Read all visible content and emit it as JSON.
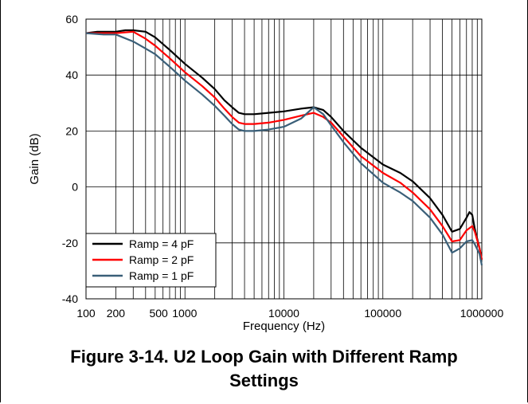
{
  "chart_data": {
    "type": "line",
    "xlabel": "Frequency (Hz)",
    "ylabel": "Gain (dB)",
    "xscale": "log",
    "xlim": [
      100,
      1000000
    ],
    "ylim": [
      -40,
      60
    ],
    "grid": true,
    "x_tick_labels": [
      "100",
      "200",
      "500",
      "1000",
      "10000",
      "100000",
      "1000000"
    ],
    "y_tick_labels": [
      "60",
      "40",
      "20",
      "0",
      "-20",
      "-40"
    ],
    "legend_position": "bottom-left",
    "series": [
      {
        "name": "Ramp = 4 pF",
        "color": "#000000",
        "points": [
          [
            100,
            55
          ],
          [
            130,
            55.5
          ],
          [
            170,
            55.5
          ],
          [
            200,
            55.5
          ],
          [
            250,
            56
          ],
          [
            300,
            56
          ],
          [
            400,
            55.5
          ],
          [
            500,
            53.5
          ],
          [
            700,
            49
          ],
          [
            1000,
            44
          ],
          [
            1500,
            39
          ],
          [
            2000,
            35
          ],
          [
            2500,
            31
          ],
          [
            3000,
            28.5
          ],
          [
            3500,
            26.5
          ],
          [
            4000,
            26
          ],
          [
            5000,
            26
          ],
          [
            7000,
            26.5
          ],
          [
            10000,
            27
          ],
          [
            15000,
            28
          ],
          [
            20000,
            28.5
          ],
          [
            25000,
            27.5
          ],
          [
            30000,
            25
          ],
          [
            40000,
            20
          ],
          [
            60000,
            14
          ],
          [
            100000,
            8
          ],
          [
            150000,
            5
          ],
          [
            200000,
            2
          ],
          [
            300000,
            -4
          ],
          [
            400000,
            -10
          ],
          [
            500000,
            -16
          ],
          [
            600000,
            -15
          ],
          [
            700000,
            -11
          ],
          [
            750000,
            -9
          ],
          [
            800000,
            -10
          ],
          [
            850000,
            -15
          ],
          [
            950000,
            -22
          ],
          [
            1000000,
            -26
          ]
        ]
      },
      {
        "name": "Ramp = 2 pF",
        "color": "#ff0000",
        "points": [
          [
            100,
            55
          ],
          [
            150,
            55
          ],
          [
            200,
            55
          ],
          [
            300,
            55.5
          ],
          [
            400,
            53
          ],
          [
            500,
            50.5
          ],
          [
            700,
            46
          ],
          [
            1000,
            41
          ],
          [
            1500,
            36
          ],
          [
            2000,
            32
          ],
          [
            2500,
            28
          ],
          [
            3000,
            25
          ],
          [
            3500,
            23
          ],
          [
            4000,
            22.5
          ],
          [
            5000,
            22.5
          ],
          [
            7000,
            23
          ],
          [
            10000,
            24
          ],
          [
            15000,
            25.5
          ],
          [
            20000,
            26.5
          ],
          [
            25000,
            25
          ],
          [
            30000,
            23
          ],
          [
            40000,
            18
          ],
          [
            60000,
            11
          ],
          [
            100000,
            5
          ],
          [
            150000,
            1.5
          ],
          [
            200000,
            -2
          ],
          [
            300000,
            -8
          ],
          [
            400000,
            -14
          ],
          [
            500000,
            -19.5
          ],
          [
            600000,
            -19
          ],
          [
            700000,
            -15.5
          ],
          [
            800000,
            -14
          ],
          [
            850000,
            -16
          ],
          [
            950000,
            -22
          ],
          [
            1000000,
            -26
          ]
        ]
      },
      {
        "name": "Ramp = 1 pF",
        "color": "#3a5f78",
        "points": [
          [
            100,
            55
          ],
          [
            150,
            54.5
          ],
          [
            200,
            54.5
          ],
          [
            300,
            52
          ],
          [
            400,
            49.5
          ],
          [
            500,
            47.5
          ],
          [
            700,
            43
          ],
          [
            1000,
            38
          ],
          [
            1500,
            33
          ],
          [
            2000,
            29
          ],
          [
            2500,
            25.5
          ],
          [
            3000,
            22.5
          ],
          [
            3500,
            20.5
          ],
          [
            4000,
            20
          ],
          [
            5000,
            20
          ],
          [
            7000,
            20.5
          ],
          [
            10000,
            21.5
          ],
          [
            15000,
            24.5
          ],
          [
            20000,
            28.5
          ],
          [
            25000,
            26
          ],
          [
            30000,
            22
          ],
          [
            40000,
            16
          ],
          [
            60000,
            8.5
          ],
          [
            100000,
            1.5
          ],
          [
            150000,
            -2
          ],
          [
            200000,
            -5
          ],
          [
            300000,
            -11
          ],
          [
            400000,
            -17
          ],
          [
            500000,
            -23.5
          ],
          [
            600000,
            -22
          ],
          [
            700000,
            -19.5
          ],
          [
            800000,
            -19
          ],
          [
            850000,
            -20.5
          ],
          [
            950000,
            -24
          ],
          [
            1000000,
            -28
          ]
        ]
      }
    ]
  },
  "caption": {
    "line1": "Figure 3-14. U2 Loop Gain with Different Ramp",
    "line2": "Settings"
  }
}
